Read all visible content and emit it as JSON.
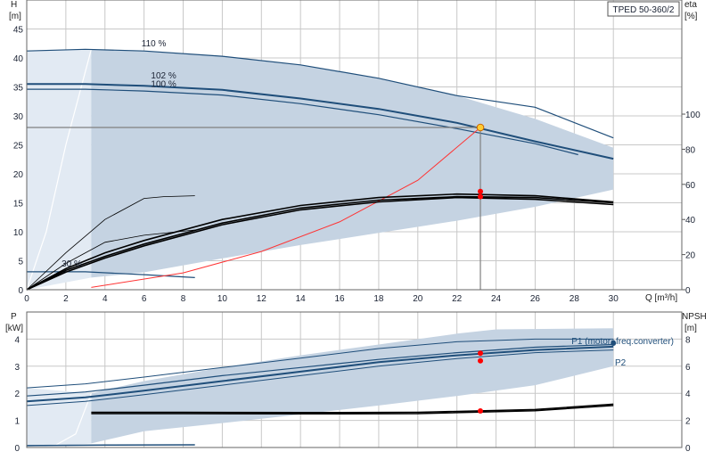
{
  "title_box": "TPED 50-360/2",
  "colors": {
    "band": "#c5d3e2",
    "band_light": "#e2eaf3",
    "curve": "#1f4e7a",
    "eff": "#000000",
    "system": "#ff3333",
    "grid": "#c8c8c8",
    "duty_point": "#ffcc33",
    "dot": "#ff0000"
  },
  "chart_data": [
    {
      "type": "line",
      "name_top": "H",
      "unit_top": "[m]",
      "right_name": "eta",
      "right_unit": "[%]",
      "xlabel": "Q [m³/h]",
      "x_ticks": [
        0,
        2,
        4,
        6,
        8,
        10,
        12,
        14,
        16,
        18,
        20,
        22,
        24,
        26,
        28,
        30
      ],
      "y_ticks": [
        0,
        5,
        10,
        15,
        20,
        25,
        30,
        35,
        40,
        45
      ],
      "eta_ticks": [
        0,
        20,
        40,
        60,
        80,
        100
      ],
      "xlim": [
        0,
        33.5
      ],
      "ylim": [
        0,
        50
      ],
      "eta_scale": [
        0,
        165
      ],
      "duty": {
        "q": 23.2,
        "h": 28,
        "eta": [
          56,
          53
        ]
      },
      "annotations": [
        {
          "text": "110 %",
          "q": 6.5,
          "h": 42
        },
        {
          "text": "102 %",
          "q": 7.0,
          "h": 36.5
        },
        {
          "text": "100 %",
          "q": 7.0,
          "h": 35
        },
        {
          "text": "30 %",
          "q": 2.3,
          "h": 4
        }
      ],
      "series": [
        {
          "role": "band-upper",
          "q": [
            3.3,
            6,
            10,
            14,
            18,
            22,
            26,
            30
          ],
          "h": [
            41.5,
            41.2,
            40.3,
            38.8,
            36.5,
            33.5,
            29.5,
            24.5
          ]
        },
        {
          "role": "band-lower",
          "q": [
            3.3,
            6,
            10,
            14,
            18,
            22,
            26,
            30
          ],
          "h": [
            2.1,
            3.0,
            5.4,
            7.7,
            9.8,
            11.9,
            14.3,
            17.3
          ]
        },
        {
          "role": "left-edge",
          "q": [
            0,
            1,
            2,
            3.3
          ],
          "h": [
            0,
            10,
            25,
            41.5
          ]
        },
        {
          "role": "h-110",
          "q": [
            0,
            3,
            6,
            10,
            14,
            18,
            22,
            26,
            30
          ],
          "h": [
            41.2,
            41.5,
            41.2,
            40.3,
            38.8,
            36.5,
            33.5,
            31.5,
            26.2
          ]
        },
        {
          "role": "h-102",
          "q": [
            0,
            3,
            6,
            10,
            14,
            18,
            22,
            26,
            30
          ],
          "h": [
            35.5,
            35.5,
            35.2,
            34.5,
            33,
            31.2,
            28.8,
            25.6,
            22.6
          ]
        },
        {
          "role": "h-100",
          "q": [
            0,
            3,
            6,
            10,
            14,
            18,
            22,
            26,
            28.2
          ],
          "h": [
            34.6,
            34.6,
            34.3,
            33.6,
            32.1,
            30.2,
            27.8,
            25.2,
            23.3
          ]
        },
        {
          "role": "h-30",
          "q": [
            0,
            3,
            6,
            8.6
          ],
          "h": [
            3.1,
            3.1,
            2.6,
            2.1
          ]
        },
        {
          "role": "system",
          "q": [
            3.3,
            8,
            12,
            16,
            20,
            23.2
          ],
          "h": [
            0.4,
            2.9,
            6.6,
            11.7,
            18.9,
            28
          ]
        },
        {
          "role": "eta",
          "q": [
            0,
            2,
            4,
            6,
            10,
            14,
            18,
            22,
            26,
            30
          ],
          "eta": [
            0,
            12,
            21,
            28,
            40,
            48,
            52.5,
            54.5,
            53.5,
            50
          ]
        },
        {
          "role": "eta",
          "q": [
            0,
            2,
            4,
            6,
            10,
            14,
            18,
            22,
            26,
            30
          ],
          "eta": [
            0,
            11,
            19,
            26,
            38,
            46.5,
            51,
            53,
            52.5,
            49.5
          ]
        },
        {
          "role": "eta",
          "q": [
            0,
            2,
            4,
            6,
            10,
            14,
            18,
            22,
            26,
            30
          ],
          "eta": [
            0,
            10,
            18,
            25,
            37,
            45.5,
            50,
            52.5,
            51.5,
            48.5
          ]
        },
        {
          "role": "eta-thin",
          "q": [
            0,
            2,
            4,
            6,
            8.6
          ],
          "eta": [
            0,
            15,
            27,
            31,
            34
          ]
        },
        {
          "role": "eta-thin",
          "q": [
            0,
            2,
            4,
            6,
            7,
            8.6
          ],
          "eta": [
            0,
            21,
            40,
            52,
            53,
            53.5
          ]
        }
      ]
    },
    {
      "type": "line",
      "name_top": "P",
      "unit_top": "[kW]",
      "right_name": "NPSH",
      "right_unit": "[m]",
      "legend": "P1 (motor+freq.converter)",
      "label_p2": "P2",
      "x_ticks": [
        0,
        2,
        4,
        6,
        8,
        10,
        12,
        14,
        16,
        18,
        20,
        22,
        24,
        26,
        28,
        30
      ],
      "p_ticks": [
        0,
        1,
        2,
        3,
        4
      ],
      "npsh_ticks": [
        0,
        2,
        4,
        6,
        8
      ],
      "xlim": [
        0,
        33.5
      ],
      "plim": [
        0,
        5
      ],
      "npsh_scale": [
        0,
        10
      ],
      "duty": {
        "q": 23.2,
        "p": [
          3.48,
          3.2
        ],
        "npsh": 2.7
      },
      "series": [
        {
          "role": "band-upper",
          "q": [
            3.3,
            6,
            10,
            14,
            18,
            22,
            24,
            30
          ],
          "p": [
            2,
            2.45,
            2.95,
            3.4,
            3.8,
            4.2,
            4.36,
            4.4
          ]
        },
        {
          "role": "band-lower",
          "q": [
            3.3,
            6,
            10,
            14,
            18,
            22,
            26,
            30
          ],
          "p": [
            0.15,
            0.6,
            0.9,
            1.22,
            1.55,
            1.9,
            2.3,
            3.0
          ]
        },
        {
          "role": "left-edge",
          "q": [
            0,
            1.5,
            2.5,
            3.3
          ],
          "p": [
            0,
            0.1,
            0.5,
            2.0
          ]
        },
        {
          "role": "p1",
          "q": [
            0,
            3,
            6,
            10,
            14,
            18,
            22,
            26,
            30
          ],
          "p": [
            2.2,
            2.35,
            2.6,
            2.95,
            3.3,
            3.65,
            3.9,
            4.0,
            4.0
          ]
        },
        {
          "role": "p1",
          "q": [
            0,
            3,
            6,
            10,
            14,
            18,
            22,
            26,
            30
          ],
          "p": [
            1.9,
            2.05,
            2.3,
            2.65,
            2.95,
            3.25,
            3.5,
            3.7,
            3.8
          ]
        },
        {
          "role": "p2",
          "q": [
            0,
            3,
            6,
            10,
            14,
            18,
            22,
            26,
            30
          ],
          "p": [
            1.7,
            1.85,
            2.1,
            2.45,
            2.8,
            3.15,
            3.4,
            3.6,
            3.72
          ]
        },
        {
          "role": "p2",
          "q": [
            0,
            3,
            6,
            10,
            14,
            18,
            22,
            26,
            30
          ],
          "p": [
            1.55,
            1.7,
            1.95,
            2.3,
            2.65,
            3.0,
            3.28,
            3.5,
            3.6
          ]
        },
        {
          "role": "npsh",
          "q": [
            3.3,
            8,
            14,
            20,
            26,
            30
          ],
          "npsh": [
            2.6,
            2.6,
            2.58,
            2.6,
            2.8,
            3.2
          ]
        },
        {
          "role": "npsh",
          "q": [
            3.3,
            8,
            14,
            20,
            26,
            30
          ],
          "npsh": [
            2.5,
            2.5,
            2.48,
            2.5,
            2.72,
            3.1
          ]
        },
        {
          "role": "p-30",
          "q": [
            0,
            4,
            8.6
          ],
          "p": [
            0.07,
            0.09,
            0.1
          ]
        }
      ]
    }
  ]
}
